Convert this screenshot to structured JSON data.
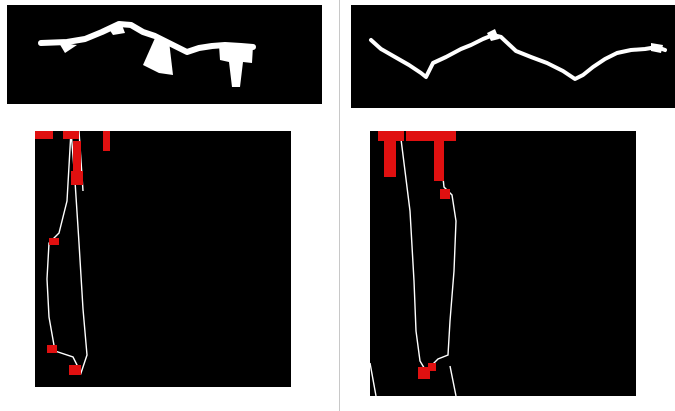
{
  "figure": {
    "left": {
      "top_panel": {
        "content": "white-binary-contour"
      },
      "bottom_panel": {
        "content": "white-contour-with-red-highlights"
      }
    },
    "right": {
      "top_panel": {
        "content": "white-binary-contour"
      },
      "bottom_panel": {
        "content": "white-contour-with-red-highlights"
      }
    }
  },
  "colors": {
    "background": "#ffffff",
    "panel": "#000000",
    "contour": "#ffffff",
    "highlight": "#e01010",
    "divider": "#c8c8c8"
  }
}
